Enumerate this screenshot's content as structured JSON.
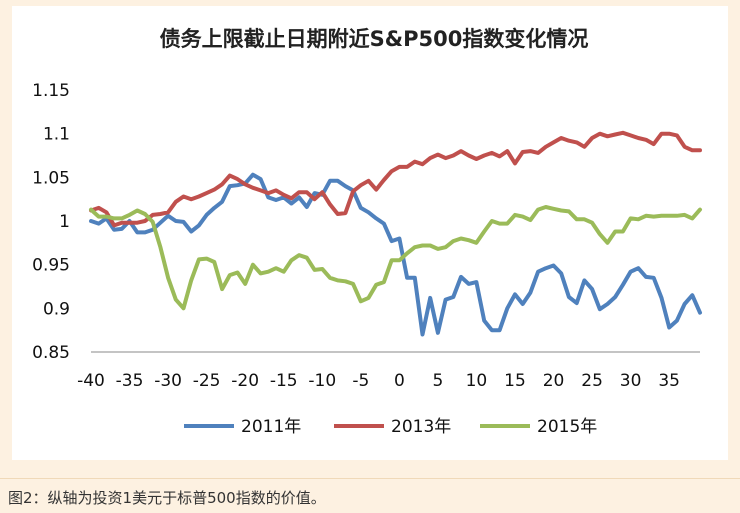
{
  "caption": "图2：纵轴为投资1美元于标普500指数的价值。",
  "chart_data": {
    "type": "line",
    "title": "债务上限截止日期附近S&P500指数变化情况",
    "xlabel": "",
    "ylabel": "",
    "xlim": [
      -40,
      39
    ],
    "ylim": [
      0.85,
      1.15
    ],
    "x_ticks": [
      "-40",
      "-35",
      "-30",
      "-25",
      "-20",
      "-15",
      "-10",
      "-5",
      "0",
      "5",
      "10",
      "15",
      "20",
      "25",
      "30",
      "35"
    ],
    "y_ticks": [
      "1.15",
      "1.1",
      "1.05",
      "1",
      "0.95",
      "0.9",
      "0.85"
    ],
    "legend_position": "bottom",
    "grid": false,
    "series": [
      {
        "name": "2011年",
        "color": "#4f81bd",
        "points": [
          [
            -40,
            1.0
          ],
          [
            -39,
            0.997
          ],
          [
            -38,
            1.003
          ],
          [
            -37,
            0.99
          ],
          [
            -36,
            0.991
          ],
          [
            -35,
            1.0
          ],
          [
            -34,
            0.987
          ],
          [
            -33,
            0.987
          ],
          [
            -32,
            0.99
          ],
          [
            -31,
            0.998
          ],
          [
            -30,
            1.006
          ],
          [
            -29,
            1.0
          ],
          [
            -28,
            0.999
          ],
          [
            -27,
            0.988
          ],
          [
            -26,
            0.995
          ],
          [
            -25,
            1.007
          ],
          [
            -24,
            1.015
          ],
          [
            -23,
            1.022
          ],
          [
            -22,
            1.04
          ],
          [
            -21,
            1.041
          ],
          [
            -20,
            1.043
          ],
          [
            -19,
            1.053
          ],
          [
            -18,
            1.048
          ],
          [
            -17,
            1.027
          ],
          [
            -16,
            1.024
          ],
          [
            -15,
            1.027
          ],
          [
            -14,
            1.02
          ],
          [
            -13,
            1.027
          ],
          [
            -12,
            1.016
          ],
          [
            -11,
            1.032
          ],
          [
            -10,
            1.03
          ],
          [
            -9,
            1.046
          ],
          [
            -8,
            1.046
          ],
          [
            -7,
            1.04
          ],
          [
            -6,
            1.035
          ],
          [
            -5,
            1.015
          ],
          [
            -4,
            1.01
          ],
          [
            -3,
            1.003
          ],
          [
            -2,
            0.997
          ],
          [
            -1,
            0.977
          ],
          [
            0,
            0.98
          ],
          [
            1,
            0.935
          ],
          [
            2,
            0.935
          ],
          [
            3,
            0.87
          ],
          [
            4,
            0.912
          ],
          [
            5,
            0.872
          ],
          [
            6,
            0.91
          ],
          [
            7,
            0.913
          ],
          [
            8,
            0.936
          ],
          [
            9,
            0.928
          ],
          [
            10,
            0.93
          ],
          [
            11,
            0.886
          ],
          [
            12,
            0.875
          ],
          [
            13,
            0.875
          ],
          [
            14,
            0.9
          ],
          [
            15,
            0.916
          ],
          [
            16,
            0.905
          ],
          [
            17,
            0.918
          ],
          [
            18,
            0.942
          ],
          [
            19,
            0.946
          ],
          [
            20,
            0.949
          ],
          [
            21,
            0.94
          ],
          [
            22,
            0.913
          ],
          [
            23,
            0.906
          ],
          [
            24,
            0.932
          ],
          [
            25,
            0.922
          ],
          [
            26,
            0.899
          ],
          [
            27,
            0.905
          ],
          [
            28,
            0.913
          ],
          [
            29,
            0.927
          ],
          [
            30,
            0.942
          ],
          [
            31,
            0.946
          ],
          [
            32,
            0.936
          ],
          [
            33,
            0.935
          ],
          [
            34,
            0.912
          ],
          [
            35,
            0.878
          ],
          [
            36,
            0.886
          ],
          [
            37,
            0.905
          ],
          [
            38,
            0.915
          ],
          [
            39,
            0.895
          ]
        ]
      },
      {
        "name": "2013年",
        "color": "#c0504d",
        "points": [
          [
            -40,
            1.012
          ],
          [
            -39,
            1.015
          ],
          [
            -38,
            1.01
          ],
          [
            -37,
            0.995
          ],
          [
            -36,
            0.998
          ],
          [
            -35,
            0.998
          ],
          [
            -34,
            0.998
          ],
          [
            -33,
            1.0
          ],
          [
            -32,
            1.007
          ],
          [
            -31,
            1.008
          ],
          [
            -30,
            1.01
          ],
          [
            -29,
            1.022
          ],
          [
            -28,
            1.028
          ],
          [
            -27,
            1.025
          ],
          [
            -26,
            1.028
          ],
          [
            -25,
            1.032
          ],
          [
            -24,
            1.036
          ],
          [
            -23,
            1.042
          ],
          [
            -22,
            1.052
          ],
          [
            -21,
            1.048
          ],
          [
            -20,
            1.042
          ],
          [
            -19,
            1.038
          ],
          [
            -18,
            1.035
          ],
          [
            -17,
            1.032
          ],
          [
            -16,
            1.035
          ],
          [
            -15,
            1.03
          ],
          [
            -14,
            1.026
          ],
          [
            -13,
            1.033
          ],
          [
            -12,
            1.033
          ],
          [
            -11,
            1.025
          ],
          [
            -10,
            1.033
          ],
          [
            -9,
            1.019
          ],
          [
            -8,
            1.008
          ],
          [
            -7,
            1.009
          ],
          [
            -6,
            1.034
          ],
          [
            -5,
            1.041
          ],
          [
            -4,
            1.046
          ],
          [
            -3,
            1.036
          ],
          [
            -2,
            1.047
          ],
          [
            -1,
            1.057
          ],
          [
            0,
            1.062
          ],
          [
            1,
            1.062
          ],
          [
            2,
            1.068
          ],
          [
            3,
            1.065
          ],
          [
            4,
            1.072
          ],
          [
            5,
            1.076
          ],
          [
            6,
            1.072
          ],
          [
            7,
            1.075
          ],
          [
            8,
            1.08
          ],
          [
            9,
            1.075
          ],
          [
            10,
            1.071
          ],
          [
            11,
            1.075
          ],
          [
            12,
            1.078
          ],
          [
            13,
            1.074
          ],
          [
            14,
            1.08
          ],
          [
            15,
            1.066
          ],
          [
            16,
            1.079
          ],
          [
            17,
            1.08
          ],
          [
            18,
            1.078
          ],
          [
            19,
            1.085
          ],
          [
            20,
            1.09
          ],
          [
            21,
            1.095
          ],
          [
            22,
            1.092
          ],
          [
            23,
            1.09
          ],
          [
            24,
            1.085
          ],
          [
            25,
            1.095
          ],
          [
            26,
            1.1
          ],
          [
            27,
            1.097
          ],
          [
            28,
            1.099
          ],
          [
            29,
            1.101
          ],
          [
            30,
            1.098
          ],
          [
            31,
            1.095
          ],
          [
            32,
            1.093
          ],
          [
            33,
            1.088
          ],
          [
            34,
            1.1
          ],
          [
            35,
            1.1
          ],
          [
            36,
            1.098
          ],
          [
            37,
            1.085
          ],
          [
            38,
            1.081
          ],
          [
            39,
            1.081
          ]
        ]
      },
      {
        "name": "2015年",
        "color": "#9bbb59",
        "points": [
          [
            -40,
            1.013
          ],
          [
            -39,
            1.005
          ],
          [
            -38,
            1.005
          ],
          [
            -37,
            1.003
          ],
          [
            -36,
            1.003
          ],
          [
            -35,
            1.007
          ],
          [
            -34,
            1.012
          ],
          [
            -33,
            1.008
          ],
          [
            -32,
            0.999
          ],
          [
            -31,
            0.97
          ],
          [
            -30,
            0.935
          ],
          [
            -29,
            0.91
          ],
          [
            -28,
            0.9
          ],
          [
            -27,
            0.932
          ],
          [
            -26,
            0.956
          ],
          [
            -25,
            0.957
          ],
          [
            -24,
            0.953
          ],
          [
            -23,
            0.922
          ],
          [
            -22,
            0.938
          ],
          [
            -21,
            0.941
          ],
          [
            -20,
            0.928
          ],
          [
            -19,
            0.95
          ],
          [
            -18,
            0.94
          ],
          [
            -17,
            0.942
          ],
          [
            -16,
            0.946
          ],
          [
            -15,
            0.942
          ],
          [
            -14,
            0.955
          ],
          [
            -13,
            0.961
          ],
          [
            -12,
            0.958
          ],
          [
            -11,
            0.944
          ],
          [
            -10,
            0.945
          ],
          [
            -9,
            0.935
          ],
          [
            -8,
            0.932
          ],
          [
            -7,
            0.931
          ],
          [
            -6,
            0.928
          ],
          [
            -5,
            0.908
          ],
          [
            -4,
            0.912
          ],
          [
            -3,
            0.927
          ],
          [
            -2,
            0.93
          ],
          [
            -1,
            0.955
          ],
          [
            0,
            0.955
          ],
          [
            1,
            0.963
          ],
          [
            2,
            0.97
          ],
          [
            3,
            0.972
          ],
          [
            4,
            0.972
          ],
          [
            5,
            0.968
          ],
          [
            6,
            0.97
          ],
          [
            7,
            0.977
          ],
          [
            8,
            0.98
          ],
          [
            9,
            0.978
          ],
          [
            10,
            0.975
          ],
          [
            11,
            0.988
          ],
          [
            12,
            1.0
          ],
          [
            13,
            0.997
          ],
          [
            14,
            0.997
          ],
          [
            15,
            1.007
          ],
          [
            16,
            1.005
          ],
          [
            17,
            1.001
          ],
          [
            18,
            1.013
          ],
          [
            19,
            1.016
          ],
          [
            20,
            1.014
          ],
          [
            21,
            1.012
          ],
          [
            22,
            1.011
          ],
          [
            23,
            1.002
          ],
          [
            24,
            1.002
          ],
          [
            25,
            0.998
          ],
          [
            26,
            0.985
          ],
          [
            27,
            0.975
          ],
          [
            28,
            0.988
          ],
          [
            29,
            0.988
          ],
          [
            30,
            1.003
          ],
          [
            31,
            1.002
          ],
          [
            32,
            1.006
          ],
          [
            33,
            1.005
          ],
          [
            34,
            1.006
          ],
          [
            35,
            1.006
          ],
          [
            36,
            1.006
          ],
          [
            37,
            1.007
          ],
          [
            38,
            1.003
          ],
          [
            39,
            1.013
          ]
        ]
      }
    ]
  }
}
